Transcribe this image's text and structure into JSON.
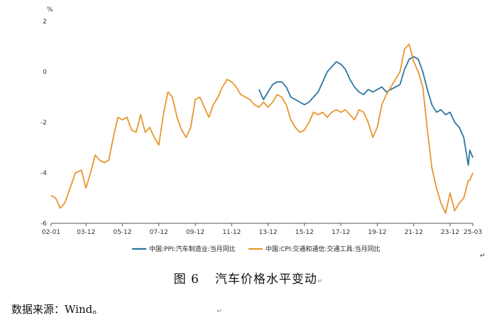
{
  "chart_data": {
    "type": "line",
    "unit_label": "%",
    "ylim": [
      -6,
      2
    ],
    "yticks": [
      2,
      0,
      -2,
      -4,
      -6
    ],
    "x_range": [
      "2002-01",
      "2025-03"
    ],
    "xtick_labels": [
      "02-01",
      "03-12",
      "05-12",
      "07-12",
      "09-12",
      "11-12",
      "13-12",
      "15-12",
      "17-12",
      "19-12",
      "21-12",
      "23-12",
      "25-03"
    ],
    "grid": false,
    "legend_position": "bottom",
    "series": [
      {
        "name": "中国:PPI:汽车制造业:当月同比",
        "color": "#2e75a0",
        "points": [
          [
            "2013-06",
            -0.7
          ],
          [
            "2013-09",
            -1.1
          ],
          [
            "2013-12",
            -0.8
          ],
          [
            "2014-03",
            -0.5
          ],
          [
            "2014-06",
            -0.4
          ],
          [
            "2014-09",
            -0.4
          ],
          [
            "2014-12",
            -0.6
          ],
          [
            "2015-03",
            -1.0
          ],
          [
            "2015-06",
            -1.1
          ],
          [
            "2015-09",
            -1.2
          ],
          [
            "2015-12",
            -1.3
          ],
          [
            "2016-03",
            -1.2
          ],
          [
            "2016-06",
            -1.0
          ],
          [
            "2016-09",
            -0.8
          ],
          [
            "2016-12",
            -0.4
          ],
          [
            "2017-03",
            0.0
          ],
          [
            "2017-06",
            0.2
          ],
          [
            "2017-09",
            0.4
          ],
          [
            "2017-12",
            0.3
          ],
          [
            "2018-03",
            0.1
          ],
          [
            "2018-06",
            -0.3
          ],
          [
            "2018-09",
            -0.6
          ],
          [
            "2018-12",
            -0.8
          ],
          [
            "2019-03",
            -0.9
          ],
          [
            "2019-06",
            -0.7
          ],
          [
            "2019-09",
            -0.8
          ],
          [
            "2019-12",
            -0.7
          ],
          [
            "2020-03",
            -0.6
          ],
          [
            "2020-06",
            -0.8
          ],
          [
            "2020-09",
            -0.7
          ],
          [
            "2021-03",
            -0.5
          ],
          [
            "2021-06",
            0.1
          ],
          [
            "2021-09",
            0.5
          ],
          [
            "2021-12",
            0.6
          ],
          [
            "2022-03",
            0.5
          ],
          [
            "2022-06",
            0.0
          ],
          [
            "2022-09",
            -0.7
          ],
          [
            "2022-12",
            -1.3
          ],
          [
            "2023-03",
            -1.6
          ],
          [
            "2023-06",
            -1.5
          ],
          [
            "2023-09",
            -1.7
          ],
          [
            "2023-12",
            -1.6
          ],
          [
            "2024-03",
            -2.0
          ],
          [
            "2024-06",
            -2.2
          ],
          [
            "2024-09",
            -2.6
          ],
          [
            "2024-12",
            -3.7
          ],
          [
            "2025-01",
            -3.1
          ],
          [
            "2025-03",
            -3.4
          ]
        ]
      },
      {
        "name": "中国:CPI:交通和通信:交通工具:当月同比",
        "color": "#e8962e",
        "points": [
          [
            "2002-01",
            -4.9
          ],
          [
            "2002-04",
            -5.0
          ],
          [
            "2002-07",
            -5.4
          ],
          [
            "2002-10",
            -5.2
          ],
          [
            "2003-01",
            -4.7
          ],
          [
            "2003-05",
            -4.0
          ],
          [
            "2003-09",
            -3.9
          ],
          [
            "2003-12",
            -4.6
          ],
          [
            "2004-03",
            -4.0
          ],
          [
            "2004-06",
            -3.3
          ],
          [
            "2004-09",
            -3.5
          ],
          [
            "2004-12",
            -3.6
          ],
          [
            "2005-03",
            -3.5
          ],
          [
            "2005-06",
            -2.6
          ],
          [
            "2005-09",
            -1.8
          ],
          [
            "2005-12",
            -1.9
          ],
          [
            "2006-03",
            -1.8
          ],
          [
            "2006-06",
            -2.3
          ],
          [
            "2006-09",
            -2.4
          ],
          [
            "2006-12",
            -1.7
          ],
          [
            "2007-03",
            -2.4
          ],
          [
            "2007-06",
            -2.2
          ],
          [
            "2007-09",
            -2.6
          ],
          [
            "2007-12",
            -2.9
          ],
          [
            "2008-03",
            -1.7
          ],
          [
            "2008-06",
            -0.8
          ],
          [
            "2008-09",
            -1.0
          ],
          [
            "2008-12",
            -1.8
          ],
          [
            "2009-03",
            -2.3
          ],
          [
            "2009-06",
            -2.6
          ],
          [
            "2009-09",
            -2.2
          ],
          [
            "2009-12",
            -1.1
          ],
          [
            "2010-03",
            -1.0
          ],
          [
            "2010-06",
            -1.4
          ],
          [
            "2010-09",
            -1.8
          ],
          [
            "2010-12",
            -1.3
          ],
          [
            "2011-03",
            -1.0
          ],
          [
            "2011-06",
            -0.6
          ],
          [
            "2011-09",
            -0.3
          ],
          [
            "2011-12",
            -0.4
          ],
          [
            "2012-03",
            -0.6
          ],
          [
            "2012-06",
            -0.9
          ],
          [
            "2012-09",
            -1.0
          ],
          [
            "2012-12",
            -1.1
          ],
          [
            "2013-03",
            -1.3
          ],
          [
            "2013-06",
            -1.4
          ],
          [
            "2013-09",
            -1.2
          ],
          [
            "2013-12",
            -1.4
          ],
          [
            "2014-03",
            -1.2
          ],
          [
            "2014-06",
            -0.9
          ],
          [
            "2014-09",
            -1.0
          ],
          [
            "2014-12",
            -1.3
          ],
          [
            "2015-03",
            -1.9
          ],
          [
            "2015-06",
            -2.2
          ],
          [
            "2015-09",
            -2.4
          ],
          [
            "2015-12",
            -2.3
          ],
          [
            "2016-03",
            -2.0
          ],
          [
            "2016-06",
            -1.6
          ],
          [
            "2016-09",
            -1.7
          ],
          [
            "2016-12",
            -1.6
          ],
          [
            "2017-03",
            -1.8
          ],
          [
            "2017-06",
            -1.6
          ],
          [
            "2017-09",
            -1.5
          ],
          [
            "2017-12",
            -1.6
          ],
          [
            "2018-03",
            -1.5
          ],
          [
            "2018-06",
            -1.7
          ],
          [
            "2018-09",
            -1.9
          ],
          [
            "2018-12",
            -1.5
          ],
          [
            "2019-03",
            -1.6
          ],
          [
            "2019-06",
            -2.0
          ],
          [
            "2019-09",
            -2.6
          ],
          [
            "2019-12",
            -2.2
          ],
          [
            "2020-03",
            -1.3
          ],
          [
            "2020-06",
            -0.9
          ],
          [
            "2020-09",
            -0.6
          ],
          [
            "2020-12",
            -0.3
          ],
          [
            "2021-03",
            0.0
          ],
          [
            "2021-06",
            0.9
          ],
          [
            "2021-09",
            1.1
          ],
          [
            "2021-12",
            0.4
          ],
          [
            "2022-03",
            0.0
          ],
          [
            "2022-06",
            -0.6
          ],
          [
            "2022-09",
            -2.3
          ],
          [
            "2022-12",
            -3.8
          ],
          [
            "2023-03",
            -4.6
          ],
          [
            "2023-06",
            -5.2
          ],
          [
            "2023-09",
            -5.6
          ],
          [
            "2023-12",
            -4.8
          ],
          [
            "2024-03",
            -5.5
          ],
          [
            "2024-06",
            -5.2
          ],
          [
            "2024-09",
            -5.0
          ],
          [
            "2024-12",
            -4.3
          ],
          [
            "2025-01",
            -4.3
          ],
          [
            "2025-03",
            -4.0
          ]
        ]
      }
    ]
  },
  "caption": {
    "figure_no": "图 6",
    "title": "汽车价格水平变动"
  },
  "source_note": "数据来源：Wind。",
  "marks": {
    "return": "↵"
  }
}
